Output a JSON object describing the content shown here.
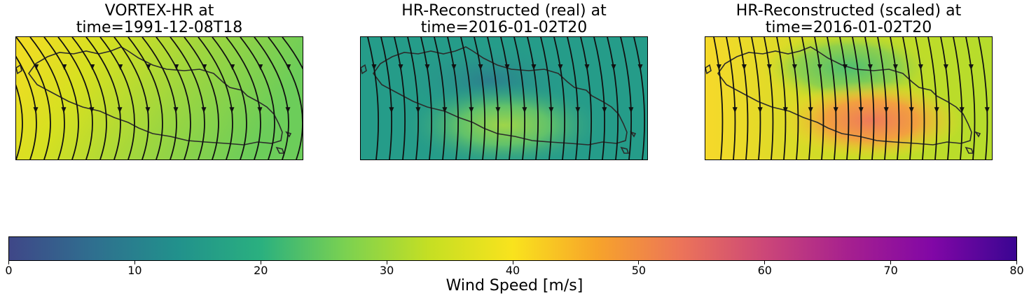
{
  "chart_data": [
    {
      "type": "heatmap",
      "title": "VORTEX-HR at",
      "subtitle": "time=1991-12-08T18",
      "colors": [
        "#f4dc24",
        "#c5df23",
        "#8fd54a",
        "#6ccd5a"
      ]
    },
    {
      "type": "heatmap",
      "title": "HR-Reconstructed (real) at",
      "subtitle": "time=2016-01-02T20",
      "colors": [
        "#2a9a8b",
        "#2c8f8c",
        "#3ba986",
        "#62c26a",
        "#9ed54a"
      ]
    },
    {
      "type": "heatmap",
      "title": "HR-Reconstructed (scaled) at",
      "subtitle": "time=2016-01-02T20",
      "colors": [
        "#f6d92a",
        "#b9dc2a",
        "#5cc46a",
        "#f3a33e",
        "#ee7f58"
      ]
    }
  ],
  "colorbar": {
    "label": "Wind Speed [m/s]",
    "range": [
      0,
      80
    ],
    "ticks": [
      "0",
      "10",
      "20",
      "30",
      "40",
      "50",
      "60",
      "70",
      "80"
    ],
    "colormap": [
      "#3f4788",
      "#2f6f8f",
      "#21918c",
      "#2ab07f",
      "#7ad151",
      "#c5df23",
      "#f9e31d",
      "#f7a42a",
      "#ec7459",
      "#cc4778",
      "#a6208f",
      "#8107a6",
      "#3a0592"
    ]
  }
}
